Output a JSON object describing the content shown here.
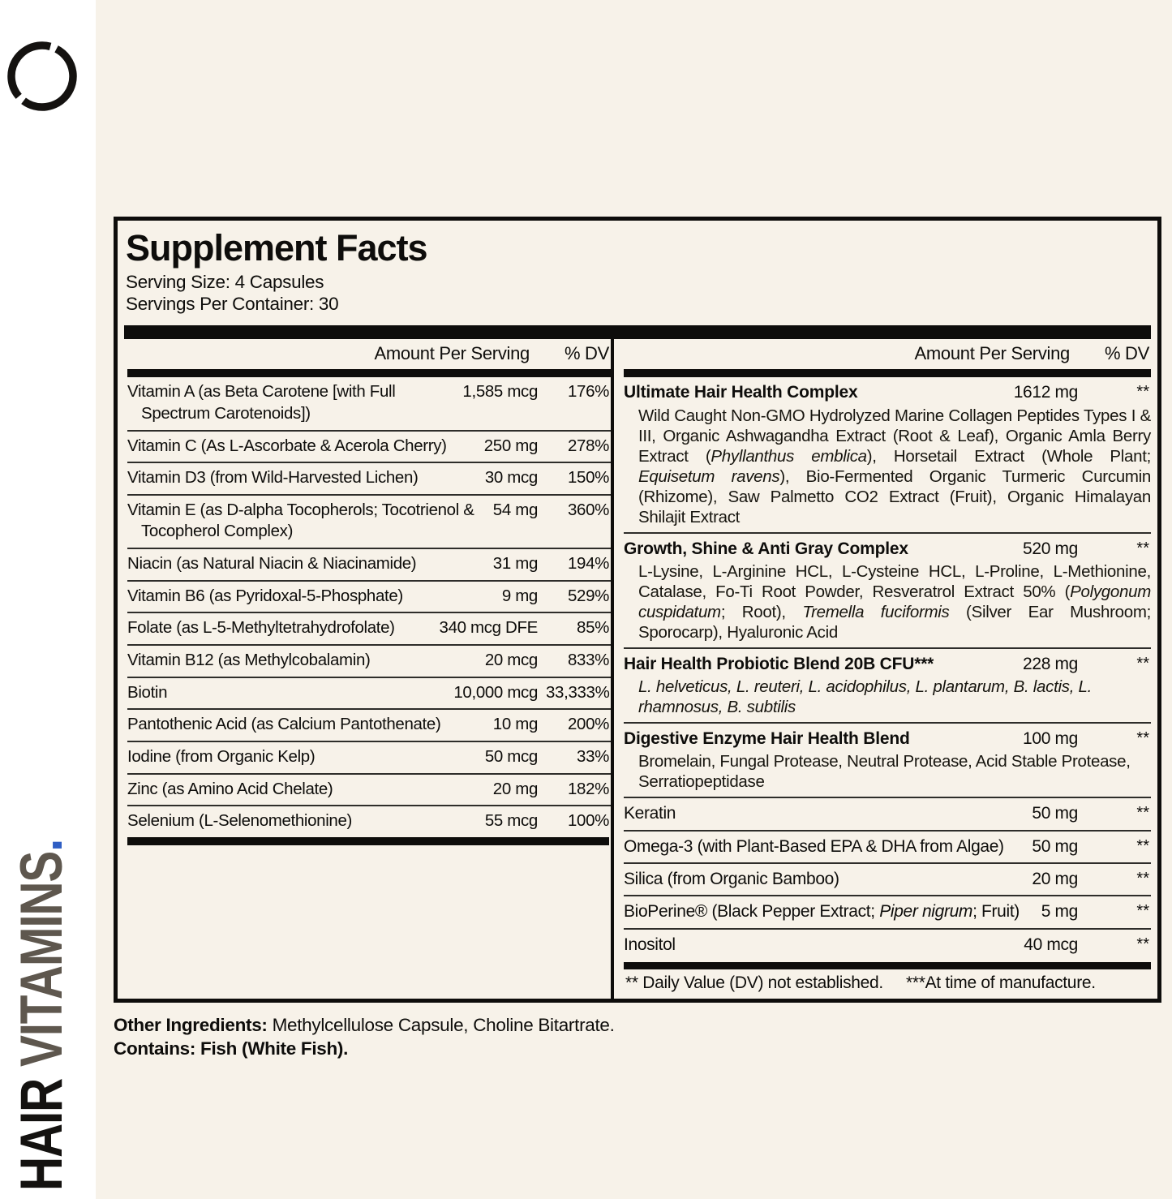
{
  "colors": {
    "cream": "#f7f2e9",
    "ink": "#0e0d0b",
    "taupe": "#5e574e",
    "blue": "#2f5ec4"
  },
  "brand": {
    "logo_icon": "broken-circle-icon",
    "product": "HAIR",
    "category": " VITAMINS",
    "dot": "."
  },
  "panel": {
    "title": "Supplement Facts",
    "serving_size": "Serving Size: 4 Capsules",
    "servings_per_container": "Servings Per Container: 30",
    "column_header": {
      "amount": "Amount Per Serving",
      "dv": "% DV"
    },
    "left_rows": [
      {
        "name": [
          {
            "t": "Vitamin A (as Beta Carotene [with Full Spectrum Carotenoids])"
          }
        ],
        "amount": "1,585 mcg",
        "dv": "176%"
      },
      {
        "name": [
          {
            "t": "Vitamin C (As L-Ascorbate & Acerola Cherry)"
          }
        ],
        "amount": "250 mg",
        "dv": "278%"
      },
      {
        "name": [
          {
            "t": "Vitamin D3 (from Wild-Harvested Lichen)"
          }
        ],
        "amount": "30 mcg",
        "dv": "150%"
      },
      {
        "name": [
          {
            "t": "Vitamin E (as D-alpha Tocopherols; Tocotrienol & Tocopherol Complex)"
          }
        ],
        "amount": "54 mg",
        "dv": "360%"
      },
      {
        "name": [
          {
            "t": "Niacin (as Natural Niacin & Niacinamide)"
          }
        ],
        "amount": "31 mg",
        "dv": "194%"
      },
      {
        "name": [
          {
            "t": "Vitamin B6 (as Pyridoxal-5-Phosphate)"
          }
        ],
        "amount": "9 mg",
        "dv": "529%"
      },
      {
        "name": [
          {
            "t": "Folate (as L-5-Methyltetrahydrofolate)"
          }
        ],
        "amount": "340 mcg DFE",
        "dv": "85%"
      },
      {
        "name": [
          {
            "t": "Vitamin B12 (as Methylcobalamin)"
          }
        ],
        "amount": "20 mcg",
        "dv": "833%"
      },
      {
        "name": [
          {
            "t": "Biotin"
          }
        ],
        "amount": "10,000 mcg",
        "dv": "33,333%"
      },
      {
        "name": [
          {
            "t": "Pantothenic Acid (as Calcium Pantothenate)"
          }
        ],
        "amount": "10 mg",
        "dv": "200%"
      },
      {
        "name": [
          {
            "t": "Iodine (from Organic Kelp)"
          }
        ],
        "amount": "50 mcg",
        "dv": "33%"
      },
      {
        "name": [
          {
            "t": "Zinc (as Amino Acid Chelate)"
          }
        ],
        "amount": "20 mg",
        "dv": "182%"
      },
      {
        "name": [
          {
            "t": "Selenium (L-Selenomethionine)"
          }
        ],
        "amount": "55 mcg",
        "dv": "100%"
      }
    ],
    "right_rows": [
      {
        "bold": true,
        "justify": true,
        "name": [
          {
            "t": "Ultimate Hair Health Complex"
          }
        ],
        "amount": "1612 mg",
        "dv": "**",
        "desc": [
          {
            "t": "Wild Caught Non-GMO Hydrolyzed Marine Collagen Peptides Types I & III, Organic Ashwagandha Extract (Root & Leaf), Organic Amla Berry Extract ("
          },
          {
            "t": "Phyllanthus emblica",
            "i": true
          },
          {
            "t": "), Horsetail Extract (Whole Plant; "
          },
          {
            "t": "Equisetum ravens",
            "i": true
          },
          {
            "t": "), Bio-Fermented Organic Turmeric Curcumin (Rhizome), Saw Palmetto CO2 Extract (Fruit), Organic Himalayan Shilajit Extract"
          }
        ]
      },
      {
        "bold": true,
        "justify": true,
        "name": [
          {
            "t": "Growth, Shine & Anti Gray Complex"
          }
        ],
        "amount": "520 mg",
        "dv": "**",
        "desc": [
          {
            "t": "L-Lysine, L-Arginine HCL, L-Cysteine HCL, L-Proline, L-Methionine, Catalase, Fo-Ti Root Powder, Resveratrol Extract 50% ("
          },
          {
            "t": "Polygonum cuspidatum",
            "i": true
          },
          {
            "t": "; Root), "
          },
          {
            "t": "Tremella fuciformis",
            "i": true
          },
          {
            "t": " (Silver Ear Mushroom; Sporocarp), Hyaluronic Acid"
          }
        ]
      },
      {
        "bold": true,
        "name": [
          {
            "t": "Hair Health Probiotic Blend 20B CFU***"
          }
        ],
        "amount": "228 mg",
        "dv": "**",
        "desc": [
          {
            "t": "L. helveticus, L. reuteri, L. acidophilus, L. plantarum, B. lactis, L. rhamnosus, B. subtilis",
            "i": true
          }
        ]
      },
      {
        "bold": true,
        "name": [
          {
            "t": "Digestive Enzyme Hair Health Blend"
          }
        ],
        "amount": "100 mg",
        "dv": "**",
        "desc": [
          {
            "t": "Bromelain, Fungal Protease, Neutral Protease, Acid Stable Protease, Serratiopeptidase"
          }
        ]
      },
      {
        "name": [
          {
            "t": "Keratin"
          }
        ],
        "amount": "50 mg",
        "dv": "**"
      },
      {
        "name": [
          {
            "t": "Omega-3 (with Plant-Based EPA & DHA from Algae)"
          }
        ],
        "amount": "50 mg",
        "dv": "**"
      },
      {
        "name": [
          {
            "t": "Silica (from Organic Bamboo)"
          }
        ],
        "amount": "20 mg",
        "dv": "**"
      },
      {
        "name": [
          {
            "t": "BioPerine® (Black Pepper Extract; "
          },
          {
            "t": "Piper nigrum",
            "i": true
          },
          {
            "t": "; Fruit)"
          }
        ],
        "amount": "5 mg",
        "dv": "**"
      },
      {
        "name": [
          {
            "t": "Inositol"
          }
        ],
        "amount": "40 mcg",
        "dv": "**"
      }
    ],
    "footnote_dv": "** Daily Value (DV) not established.",
    "footnote_mfg": "***At time of manufacture."
  },
  "below_panel": {
    "other_ingredients_label": "Other Ingredients:",
    "other_ingredients_value": " Methylcellulose Capsule, Choline Bitartrate.",
    "contains": "Contains: Fish (White Fish)."
  }
}
